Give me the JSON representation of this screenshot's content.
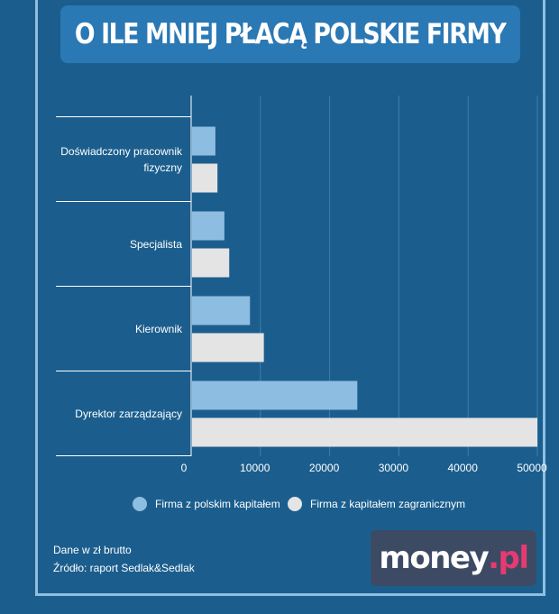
{
  "title": "O ILE MNIEJ PŁACĄ POLSKIE FIRMY",
  "chart_data": {
    "type": "bar",
    "orientation": "horizontal",
    "categories": [
      [
        "Doświadczony pracownik",
        "fizyczny"
      ],
      [
        "Specjalista"
      ],
      [
        "Kierownik"
      ],
      [
        "Dyrektor zarządzający"
      ]
    ],
    "series": [
      {
        "name": "Firma z polskim kapitałem",
        "color": "#8dbde0",
        "values": [
          3500,
          4800,
          8500,
          24000
        ]
      },
      {
        "name": "Firma z kapitałem zagranicznym",
        "color": "#e4e4e4",
        "values": [
          3800,
          5500,
          10500,
          50000
        ]
      }
    ],
    "xlim": [
      0,
      50000
    ],
    "xticks": [
      0,
      10000,
      20000,
      30000,
      40000,
      50000
    ],
    "xtick_labels": [
      "0",
      "10000",
      "20000",
      "30000",
      "40000",
      "50000"
    ],
    "grid": true,
    "legend_position": "bottom"
  },
  "notes": {
    "unit": "Dane w zł brutto",
    "source": "Źródło: raport Sedlak&Sedlak"
  },
  "logo": {
    "word": "money",
    "suffix": ".pl"
  },
  "colors": {
    "background": "#1b5e8e",
    "title_box": "#2a78b4",
    "polish": "#8dbde0",
    "foreign": "#e4e4e4"
  }
}
